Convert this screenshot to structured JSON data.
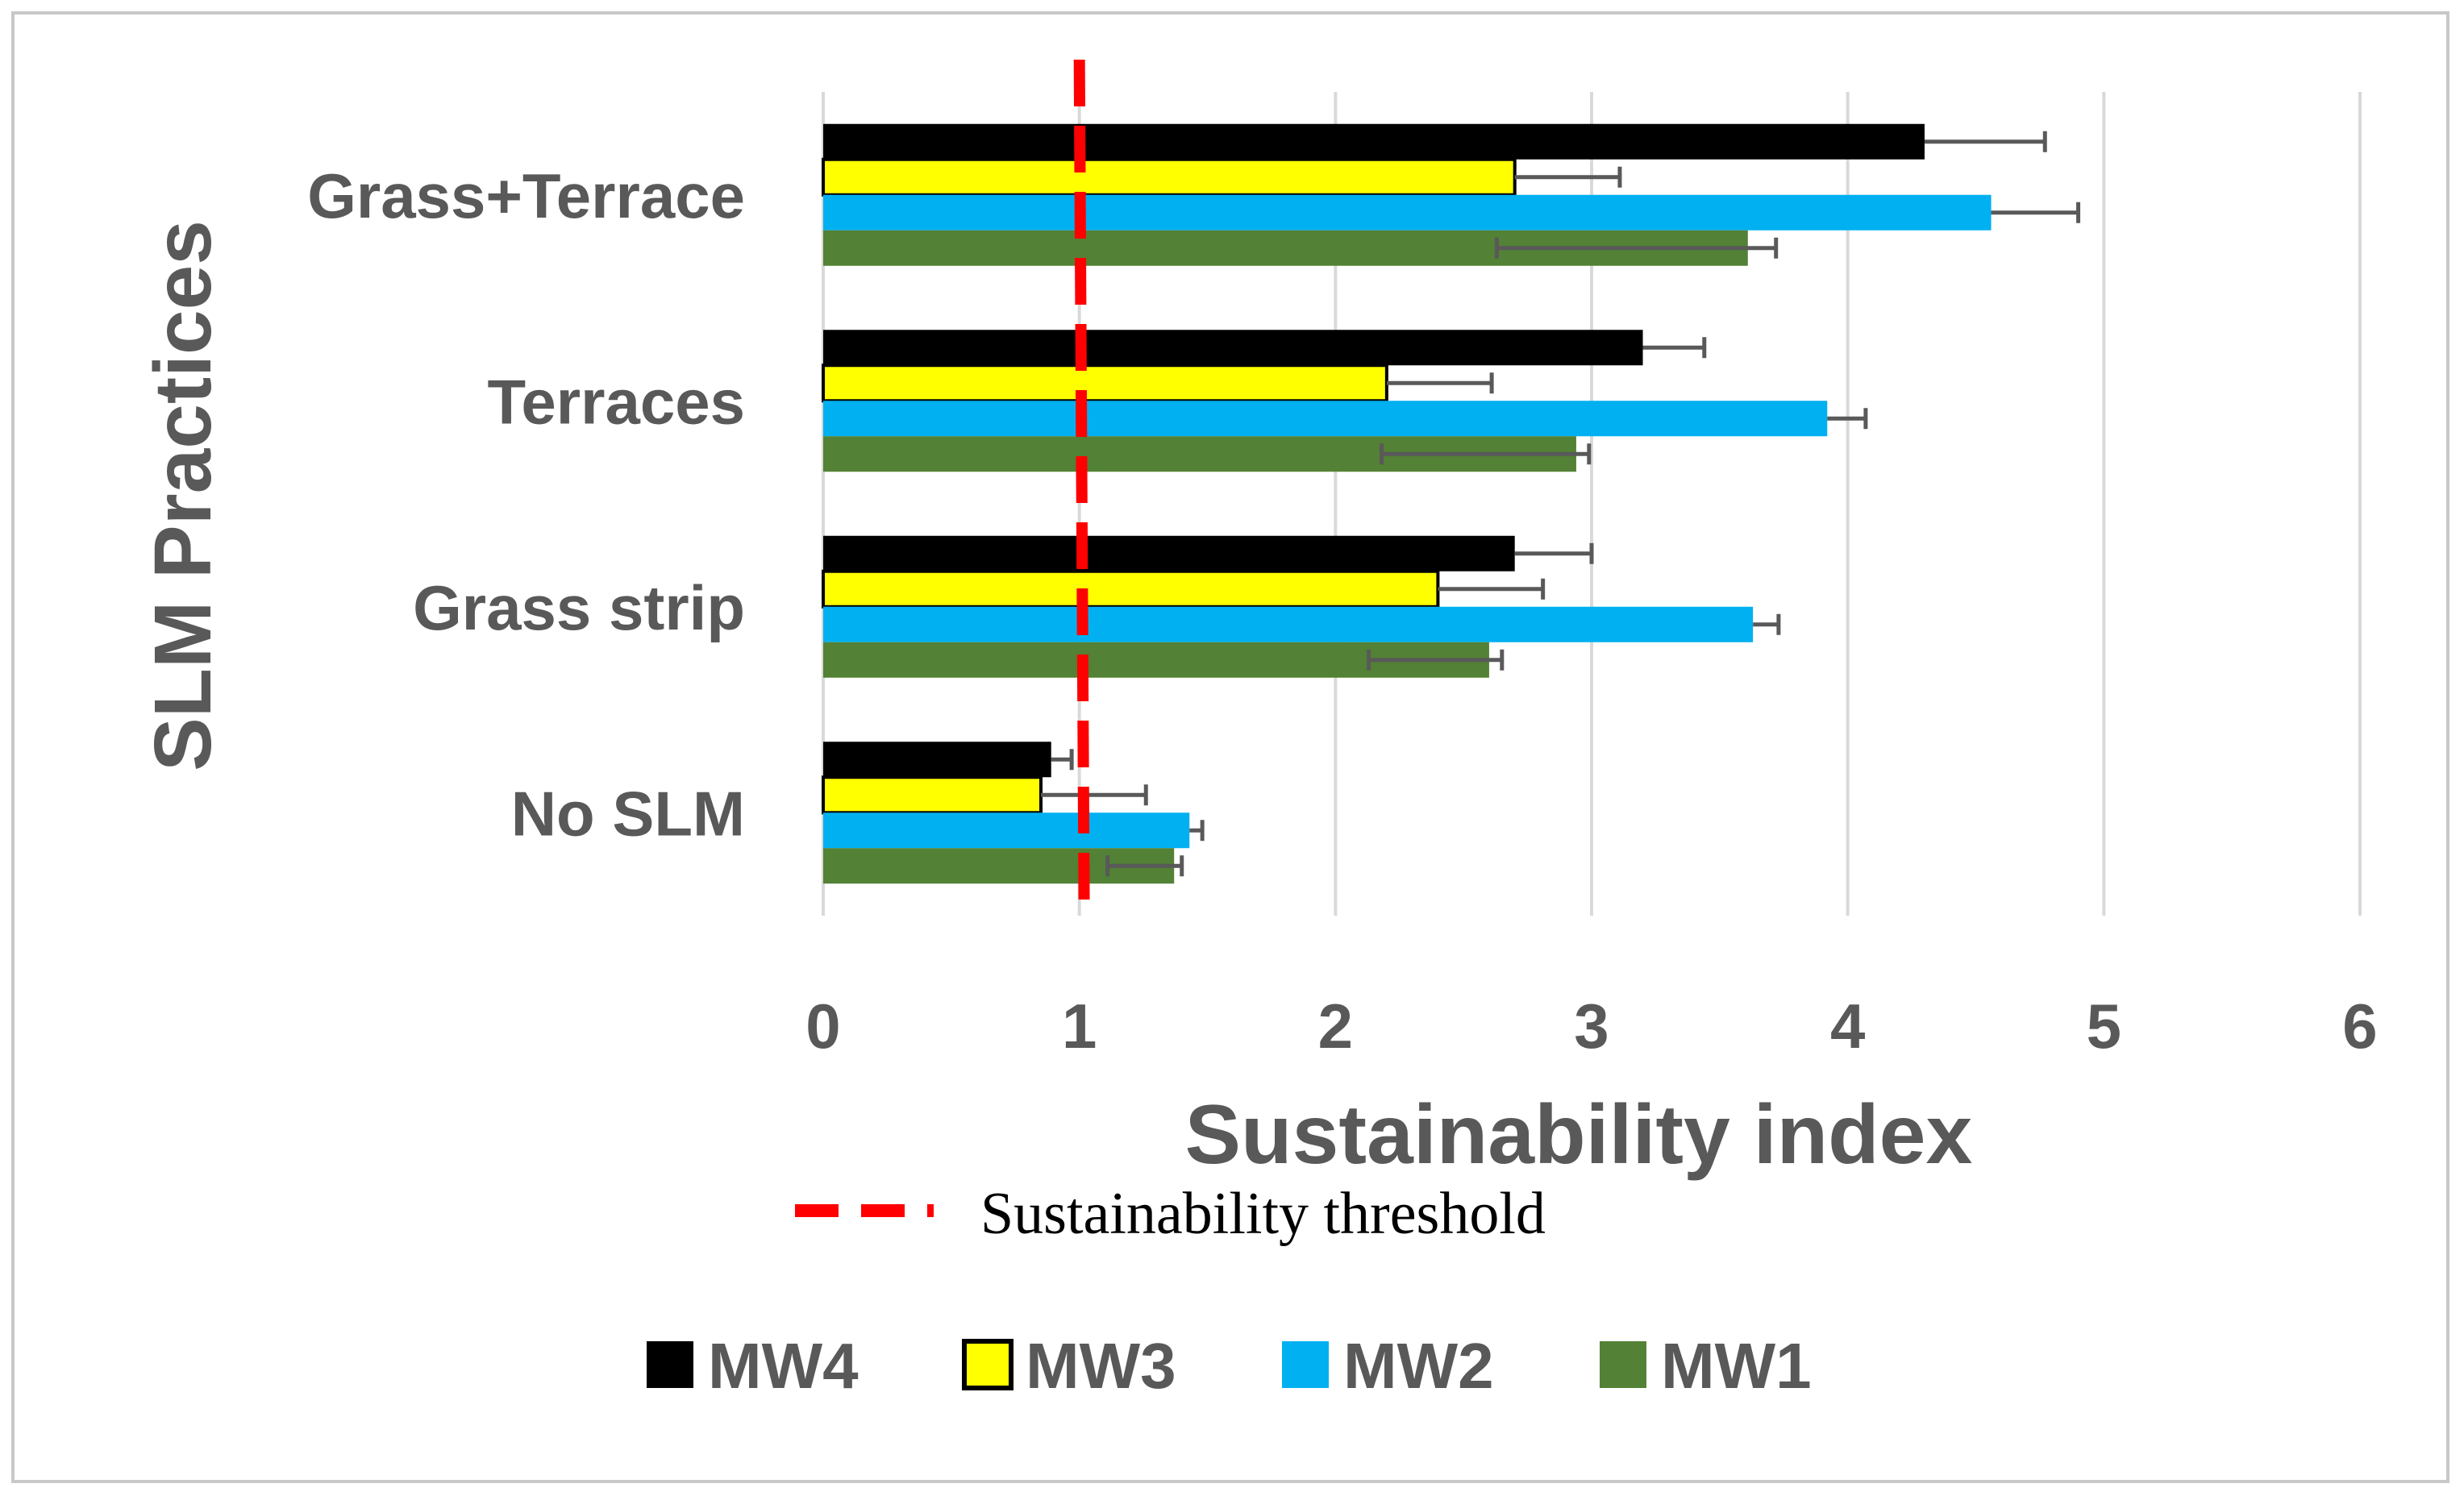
{
  "chart_data": {
    "type": "bar",
    "orientation": "horizontal",
    "title": "",
    "xlabel": "Sustainability index",
    "ylabel": "SLM Practices",
    "xlim": [
      0,
      6
    ],
    "x_ticks": [
      "0",
      "1",
      "2",
      "3",
      "4",
      "5",
      "6"
    ],
    "grid": "vertical",
    "categories": [
      "Grass+Terrace",
      "Terraces",
      "Grass strip",
      "No SLM"
    ],
    "series": [
      {
        "name": "MW4",
        "color": "#000000",
        "values": [
          4.3,
          3.2,
          2.7,
          0.89
        ],
        "errors": [
          0.47,
          0.24,
          0.3,
          0.08
        ]
      },
      {
        "name": "MW3",
        "color": "#ffff00",
        "values": [
          2.7,
          2.2,
          2.4,
          0.85
        ],
        "errors": [
          0.41,
          0.41,
          0.41,
          0.41
        ]
      },
      {
        "name": "MW2",
        "color": "#00b0f0",
        "values": [
          4.56,
          3.92,
          3.63,
          1.43
        ],
        "errors": [
          0.34,
          0.15,
          0.1,
          0.05
        ]
      },
      {
        "name": "MW1",
        "color": "#538135",
        "values": [
          3.61,
          2.94,
          2.6,
          1.37
        ],
        "errors": [
          0.11,
          0.05,
          0.05,
          0.03
        ],
        "errors_minus": [
          0.98,
          0.76,
          0.47,
          0.26
        ]
      }
    ],
    "threshold": {
      "value": 1,
      "label": "Sustainability threshold",
      "color": "#ff0000",
      "style": "dashed"
    },
    "legend_position": "bottom"
  }
}
